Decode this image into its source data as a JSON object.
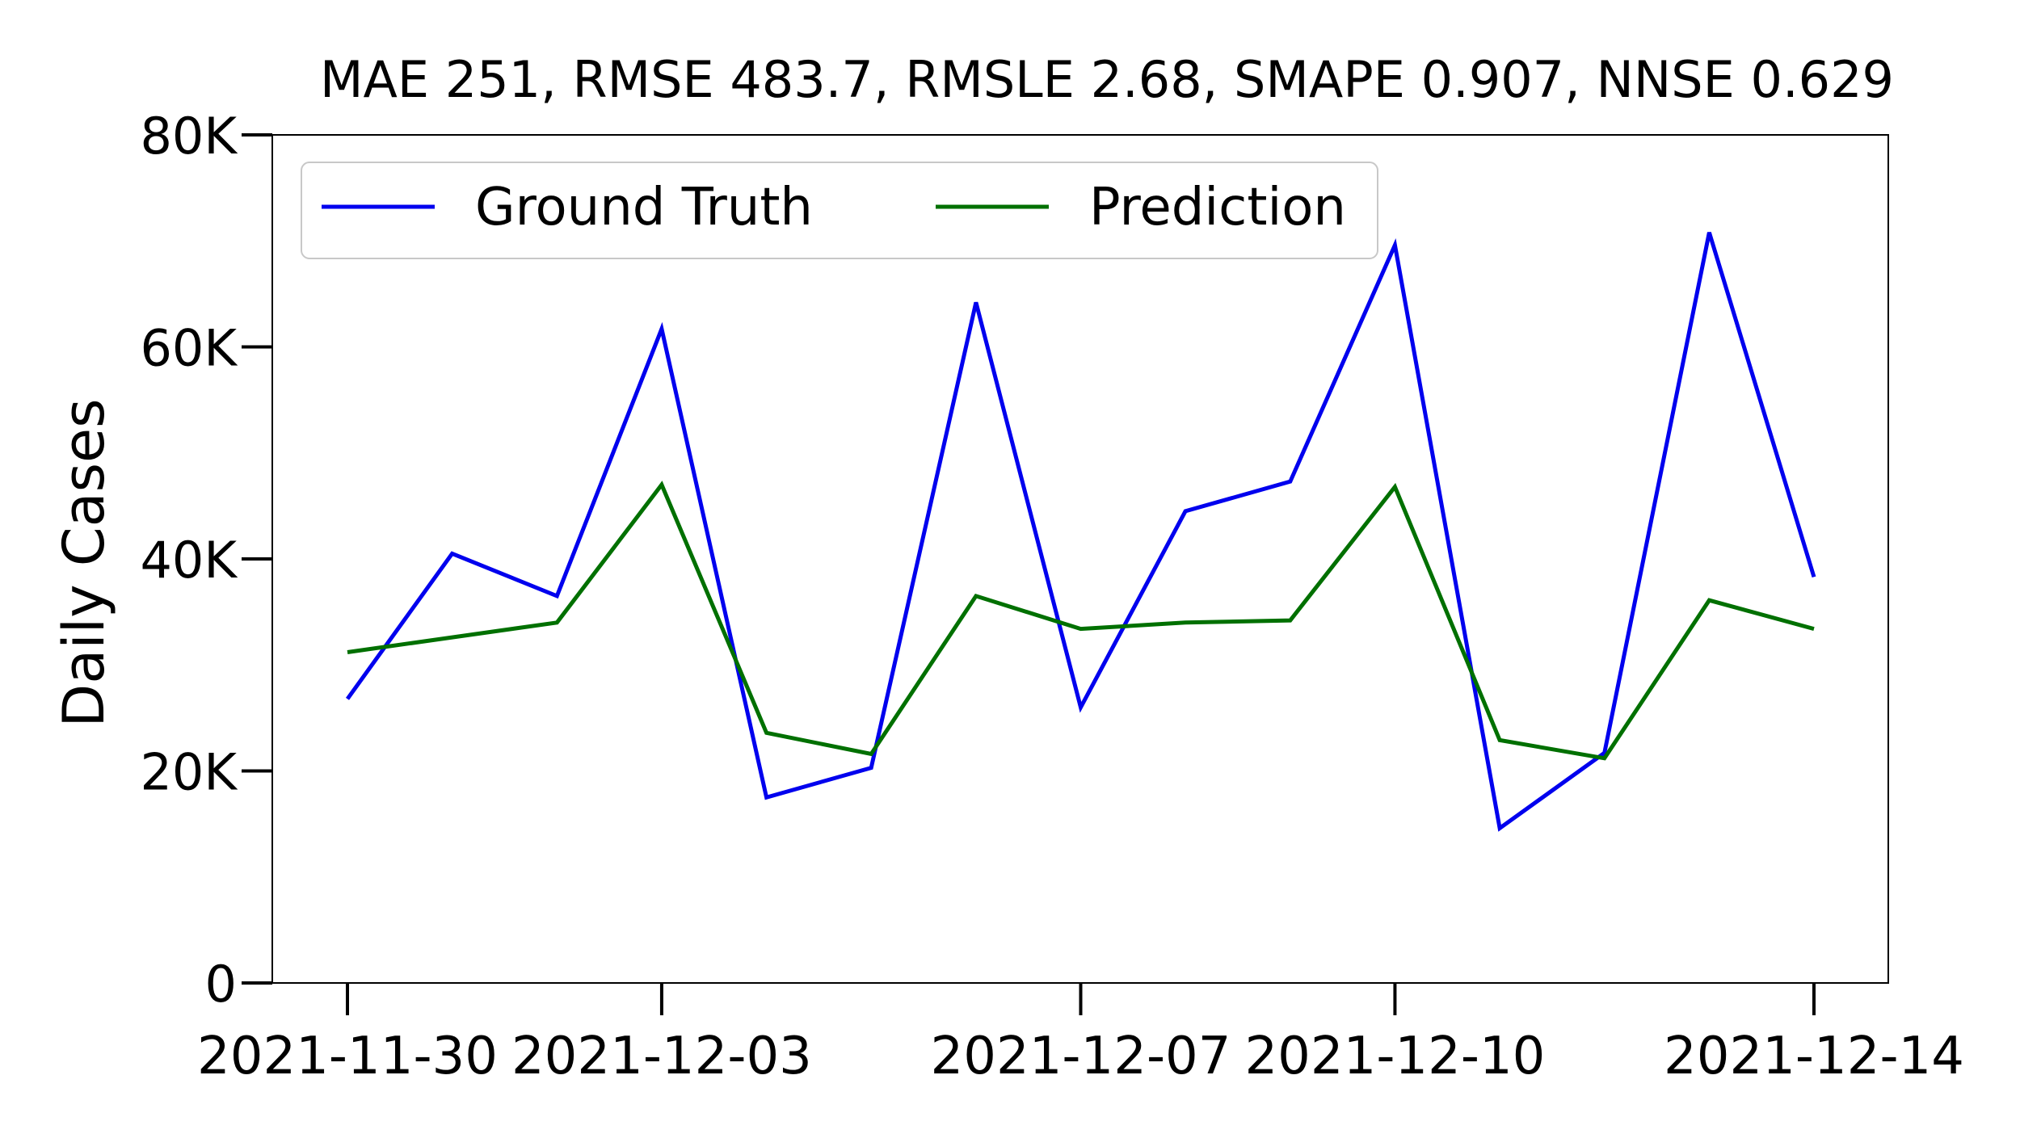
{
  "chart_data": {
    "type": "line",
    "title": "MAE 251, RMSE 483.7, RMSLE 2.68, SMAPE 0.907, NNSE 0.629",
    "xlabel": "",
    "ylabel": "Daily Cases",
    "ylim": [
      0,
      80000
    ],
    "yticks": [
      {
        "value": 0,
        "label": "0"
      },
      {
        "value": 20000,
        "label": "20K"
      },
      {
        "value": 40000,
        "label": "40K"
      },
      {
        "value": 60000,
        "label": "60K"
      },
      {
        "value": 80000,
        "label": "80K"
      }
    ],
    "x": [
      "2021-11-30",
      "2021-12-01",
      "2021-12-02",
      "2021-12-03",
      "2021-12-04",
      "2021-12-05",
      "2021-12-06",
      "2021-12-07",
      "2021-12-08",
      "2021-12-09",
      "2021-12-10",
      "2021-12-11",
      "2021-12-12",
      "2021-12-13",
      "2021-12-14"
    ],
    "xticks": [
      "2021-11-30",
      "2021-12-03",
      "2021-12-07",
      "2021-12-10",
      "2021-12-14"
    ],
    "series": [
      {
        "name": "Ground Truth",
        "color": "#0000ee",
        "values": [
          26800,
          40500,
          36500,
          61700,
          17500,
          20300,
          64200,
          26000,
          44500,
          47300,
          69600,
          14600,
          21700,
          70800,
          38300
        ]
      },
      {
        "name": "Prediction",
        "color": "#007000",
        "values": [
          31200,
          32600,
          34000,
          47000,
          23600,
          21600,
          36500,
          33400,
          34000,
          34200,
          46800,
          22900,
          21200,
          36100,
          33400
        ]
      }
    ],
    "grid": false,
    "legend_position": "top-left"
  }
}
